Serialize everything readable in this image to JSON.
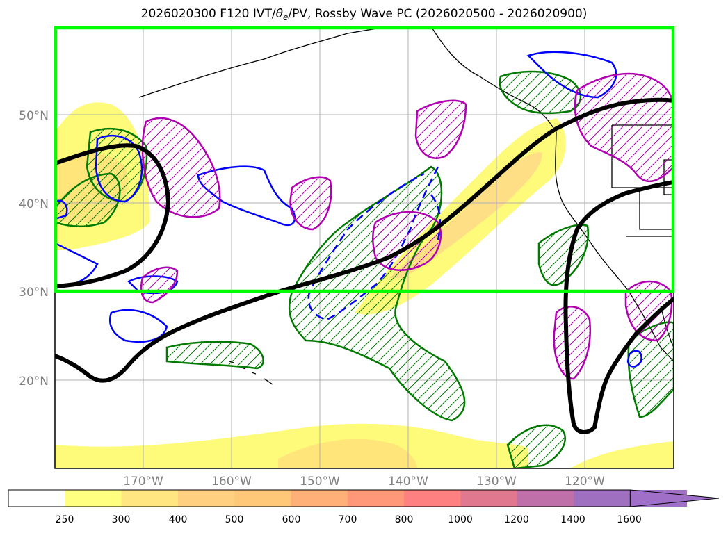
{
  "title": {
    "prefix": "2026020300 F120 IVT/",
    "theta": "θ",
    "sub": "e",
    "suffix": "/PV, Rossby Wave PC (2026020500 - 2026020900)"
  },
  "map": {
    "lat_labels": [
      "50°N",
      "40°N",
      "30°N",
      "20°N"
    ],
    "lon_labels": [
      "170°W",
      "160°W",
      "150°W",
      "140°W",
      "130°W",
      "120°W"
    ],
    "domain_box_color": "#00ff00",
    "ivt_color_low": "#fffb7a",
    "ivt_color_mid": "#ffd27a",
    "contour_colors": {
      "rossby_wave": "#000000",
      "positive_pv": "#b000b0",
      "negative_pv": "#0000ff",
      "theta_e": "#007a00"
    }
  },
  "colorbar": {
    "labels": [
      "250",
      "300",
      "400",
      "500",
      "600",
      "700",
      "800",
      "1000",
      "1200",
      "1400",
      "1600"
    ],
    "colors": [
      "#ffffff",
      "#ffff80",
      "#ffe680",
      "#ffd080",
      "#ffc878",
      "#ffb078",
      "#ff9878",
      "#ff8080",
      "#e07890",
      "#c070a8",
      "#a070c0",
      "#a070c8"
    ]
  }
}
